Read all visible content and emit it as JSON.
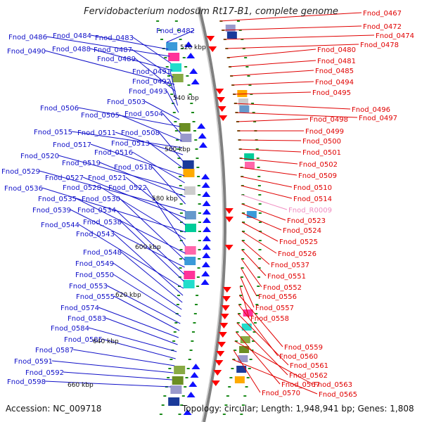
{
  "title": "Fervidobacterium nodosum Rt17-B1, complete genome",
  "footer": {
    "accession": "Accession: NC_009718",
    "topology": "Topology: circular; Length: 1,948,941 bp; Genes: 1,808"
  },
  "colors": {
    "forward_label": "#1010c8",
    "reverse_label": "#e00000",
    "rna_label": "#f08cc0",
    "backbone": "#808080",
    "ticks": "#1a8a1a",
    "forward_arrow": "#1010ff",
    "reverse_arrow": "#ff0000"
  },
  "scale_labels": [
    "520 kbp",
    "540 kbp",
    "560 kbp",
    "580 kbp",
    "600 kbp",
    "620 kbp",
    "640 kbp",
    "660 kbp"
  ],
  "left_genes": [
    "Fnod_0482",
    "Fnod_0484",
    "Fnod_0486",
    "Fnod_0483",
    "Fnod_0488",
    "Fnod_0487",
    "Fnod_0490",
    "Fnod_0489",
    "Fnod_0491",
    "Fnod_0492",
    "Fnod_0493",
    "Fnod_0503",
    "Fnod_0506",
    "Fnod_0504",
    "Fnod_0505",
    "Fnod_0515",
    "Fnod_0511",
    "Fnod_0508",
    "Fnod_0513",
    "Fnod_0517",
    "Fnod_0516",
    "Fnod_0520",
    "Fnod_0519",
    "Fnod_0518",
    "Fnod_0529",
    "Fnod_0527",
    "Fnod_0521",
    "Fnod_0536",
    "Fnod_0528",
    "Fnod_0522",
    "Fnod_0535",
    "Fnod_0530",
    "Fnod_0539",
    "Fnod_0534",
    "Fnod_0538",
    "Fnod_0544",
    "Fnod_0543",
    "Fnod_0548",
    "Fnod_0549",
    "Fnod_0550",
    "Fnod_0553",
    "Fnod_0555",
    "Fnod_0574",
    "Fnod_0583",
    "Fnod_0584",
    "Fnod_0585",
    "Fnod_0587",
    "Fnod_0591",
    "Fnod_0592",
    "Fnod_0598"
  ],
  "right_genes": [
    "Fnod_0467",
    "Fnod_0472",
    "Fnod_0474",
    "Fnod_0478",
    "Fnod_0480",
    "Fnod_0481",
    "Fnod_0485",
    "Fnod_0494",
    "Fnod_0495",
    "Fnod_0496",
    "Fnod_0497",
    "Fnod_0498",
    "Fnod_0499",
    "Fnod_0500",
    "Fnod_0501",
    "Fnod_0502",
    "Fnod_0509",
    "Fnod_0510",
    "Fnod_0514",
    "Fnod_R0009",
    "Fnod_0523",
    "Fnod_0524",
    "Fnod_0525",
    "Fnod_0526",
    "Fnod_0537",
    "Fnod_0551",
    "Fnod_0552",
    "Fnod_0556",
    "Fnod_0557",
    "Fnod_0558",
    "Fnod_0559",
    "Fnod_0560",
    "Fnod_0561",
    "Fnod_0562",
    "Fnod_0567",
    "Fnod_0563",
    "Fnod_0570",
    "Fnod_0565"
  ]
}
